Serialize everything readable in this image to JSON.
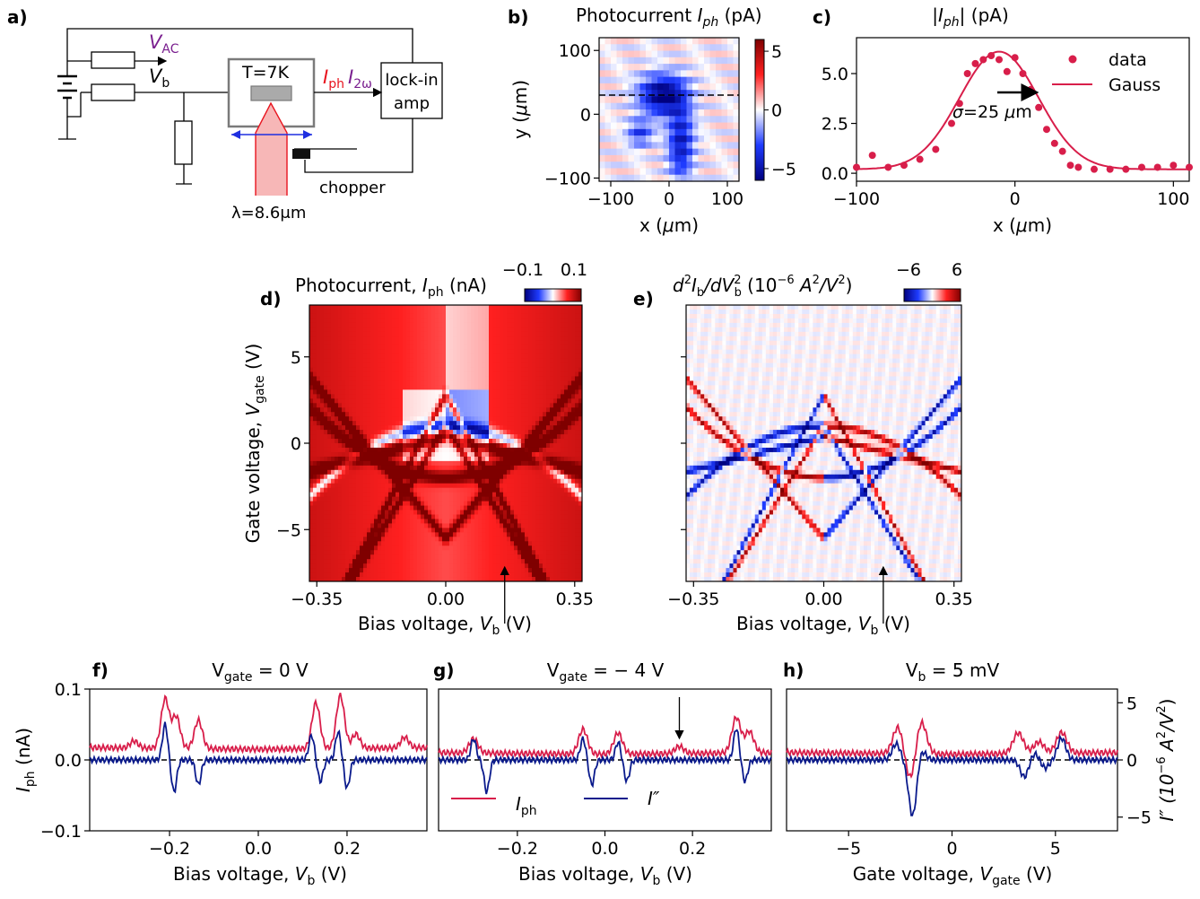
{
  "panel_labels": {
    "a": "a)",
    "b": "b)",
    "c": "c)",
    "d": "d)",
    "e": "e)",
    "f": "f)",
    "g": "g)",
    "h": "h)"
  },
  "schematic": {
    "vac_label": "V",
    "vac_sub": "AC",
    "vb_label": "V",
    "vb_sub": "b",
    "temp_label": "T=7K",
    "iph_label": "I",
    "iph_sub": "ph",
    "i2w_label": "I",
    "i2w_sub": "2ω",
    "lockin_line1": "lock-in",
    "lockin_line2": "amp",
    "chopper_label": "chopper",
    "wavelength_label": "λ=8.6μm",
    "colors": {
      "purple": "#7a1f8f",
      "red": "#e8141e",
      "blue": "#1f2fe0",
      "beam": "#f7b7b7"
    }
  },
  "chart_data": [
    {
      "id": "b",
      "type": "heatmap",
      "title": "Photocurrent I_ph (pA)",
      "title_parts": [
        "Photocurrent ",
        "I",
        "ph",
        " (pA)"
      ],
      "xlabel_parts": [
        "x (",
        "μ",
        "m)"
      ],
      "ylabel_parts": [
        "y (",
        "μ",
        "m)"
      ],
      "xlim": [
        -120,
        120
      ],
      "ylim": [
        -105,
        120
      ],
      "xticks": [
        -100,
        0,
        100
      ],
      "yticks": [
        -100,
        0,
        100
      ],
      "xtick_labels": [
        "−100",
        "0",
        "100"
      ],
      "ytick_labels": [
        "−100",
        "0",
        "100"
      ],
      "colorbar": {
        "range": [
          -6,
          6
        ],
        "ticks": [
          5,
          0,
          -5
        ],
        "tick_labels": [
          "5",
          "0",
          "−5"
        ]
      },
      "dashed_line_y": 30,
      "grid_size": [
        24,
        22
      ],
      "blobs": [
        {
          "x": -10,
          "y": 30,
          "sx": 28,
          "sy": 22,
          "amp": -6
        },
        {
          "x": -50,
          "y": -30,
          "sx": 15,
          "sy": 15,
          "amp": -3
        },
        {
          "x": 20,
          "y": -45,
          "sx": 15,
          "sy": 40,
          "amp": -4.5
        }
      ]
    },
    {
      "id": "c",
      "type": "scatter",
      "title_parts": [
        "|",
        "I",
        "ph",
        "| (pA)"
      ],
      "xlabel_parts": [
        "x (",
        "μ",
        "m)"
      ],
      "xlim": [
        -100,
        110
      ],
      "ylim": [
        -0.4,
        6.8
      ],
      "xticks": [
        -100,
        0,
        100
      ],
      "xtick_labels": [
        "−100",
        "0",
        "100"
      ],
      "yticks": [
        0,
        2.5,
        5
      ],
      "ytick_labels": [
        "0.0",
        "2.5",
        "5.0"
      ],
      "series": [
        {
          "name": "data",
          "kind": "points",
          "x": [
            -100,
            -90,
            -80,
            -70,
            -60,
            -50,
            -40,
            -35,
            -30,
            -25,
            -20,
            -15,
            -10,
            -5,
            0,
            5,
            10,
            15,
            20,
            25,
            30,
            35,
            40,
            50,
            60,
            70,
            80,
            90,
            100,
            110
          ],
          "y": [
            0.3,
            0.9,
            0.3,
            0.4,
            0.7,
            1.2,
            2.5,
            3.5,
            5.0,
            5.5,
            5.7,
            5.9,
            5.7,
            5.1,
            5.8,
            5.0,
            4.2,
            3.3,
            2.2,
            1.5,
            1.1,
            0.4,
            0.3,
            0.2,
            0.2,
            0.2,
            0.3,
            0.3,
            0.4,
            0.3
          ]
        },
        {
          "name": "Gauss",
          "kind": "line",
          "mu": -10,
          "sigma": 25,
          "amp": 5.9,
          "offset": 0.2
        }
      ],
      "annotation": "σ=25 μm",
      "annotation_parts": [
        "σ",
        "=25 ",
        "μ",
        "m"
      ],
      "legend": [
        "data",
        "Gauss"
      ],
      "legend_position": "top-right"
    },
    {
      "id": "d",
      "type": "heatmap",
      "title": "Photocurrent, I_ph (nA)",
      "title_parts": [
        "Photocurrent, ",
        "I",
        "ph",
        " (nA)"
      ],
      "colorbar": {
        "range": [
          -0.1,
          0.1
        ],
        "tick_labels": [
          "−0.1",
          "0.1"
        ]
      },
      "xlim": [
        -0.37,
        0.37
      ],
      "ylim": [
        -8,
        8
      ],
      "xticks": [
        -0.35,
        0.0,
        0.35
      ],
      "xtick_labels": [
        "−0.35",
        "0.00",
        "0.35"
      ],
      "yticks": [
        -5,
        0,
        5
      ],
      "ytick_labels": [
        "−5",
        "0",
        "5"
      ],
      "xlabel_parts": [
        "Bias voltage, ",
        "V",
        "b",
        " (V)"
      ],
      "ylabel_parts": [
        "Gate voltage, ",
        "V",
        "gate",
        " (V)"
      ],
      "arrow_x": 0.16
    },
    {
      "id": "e",
      "type": "heatmap",
      "title_parts": [
        "d",
        "2",
        "I",
        "b",
        "/d",
        "V",
        "2",
        "b",
        " (10",
        "−6",
        " A",
        "2",
        "/V",
        "2",
        ")"
      ],
      "colorbar": {
        "range": [
          -6,
          6
        ],
        "tick_labels": [
          "−6",
          "6"
        ]
      },
      "xlim": [
        -0.37,
        0.37
      ],
      "ylim": [
        -8,
        8
      ],
      "xticks": [
        -0.35,
        0.0,
        0.35
      ],
      "xtick_labels": [
        "−0.35",
        "0.00",
        "0.35"
      ],
      "yticks": [
        -5,
        0,
        5
      ],
      "xlabel_parts": [
        "Bias voltage, ",
        "V",
        "b",
        " (V)"
      ],
      "arrow_x": 0.16
    },
    {
      "id": "f",
      "type": "line",
      "title_parts": [
        "V",
        "gate",
        " = 0 V"
      ],
      "xlim": [
        -0.38,
        0.38
      ],
      "ylim": [
        -0.1,
        0.1
      ],
      "xticks": [
        -0.2,
        0.0,
        0.2
      ],
      "xtick_labels": [
        "−0.2",
        "0.0",
        "0.2"
      ],
      "yticks": [
        0.1,
        0.0,
        -0.1
      ],
      "ytick_labels": [
        "0.1",
        "0.0",
        "−0.1"
      ],
      "xlabel_parts": [
        "Bias voltage, ",
        "V",
        "b",
        " (V)"
      ],
      "ylabel_parts": [
        "I",
        "ph",
        " (nA)"
      ],
      "series": [
        {
          "name": "I_ph",
          "base": 0.015,
          "peaks": [
            [
              -0.21,
              0.07
            ],
            [
              -0.185,
              0.045
            ],
            [
              -0.135,
              0.04
            ],
            [
              -0.28,
              0.01
            ],
            [
              0.13,
              0.065
            ],
            [
              0.185,
              0.075
            ],
            [
              0.22,
              0.02
            ],
            [
              0.33,
              0.015
            ]
          ],
          "width": 0.009
        },
        {
          "name": "I''",
          "base": 0.0,
          "peaks": [
            [
              -0.21,
              0.05
            ],
            [
              -0.19,
              -0.045
            ],
            [
              -0.135,
              -0.035
            ],
            [
              0.12,
              0.035
            ],
            [
              0.14,
              -0.03
            ],
            [
              0.18,
              0.04
            ],
            [
              0.2,
              -0.04
            ]
          ],
          "width": 0.006
        }
      ]
    },
    {
      "id": "g",
      "type": "line",
      "title_parts": [
        "V",
        "gate",
        " = − 4 V"
      ],
      "xlim": [
        -0.38,
        0.38
      ],
      "ylim": [
        -0.1,
        0.1
      ],
      "xticks": [
        -0.2,
        0.0,
        0.2
      ],
      "xtick_labels": [
        "−0.2",
        "0.0",
        "0.2"
      ],
      "xlabel_parts": [
        "Bias voltage, ",
        "V",
        "b",
        " (V)"
      ],
      "legend": [
        "I_ph",
        "I''"
      ],
      "legend_parts": [
        [
          "I",
          "ph"
        ],
        [
          "I",
          "″"
        ]
      ],
      "legend_position": "bottom-left",
      "arrow_x": 0.17,
      "series": [
        {
          "name": "I_ph",
          "base": 0.008,
          "peaks": [
            [
              -0.3,
              0.02
            ],
            [
              -0.05,
              0.035
            ],
            [
              0.03,
              0.03
            ],
            [
              0.17,
              0.01
            ],
            [
              0.3,
              0.05
            ],
            [
              0.33,
              0.03
            ]
          ],
          "width": 0.01
        },
        {
          "name": "I''",
          "base": 0.0,
          "peaks": [
            [
              -0.3,
              0.03
            ],
            [
              -0.27,
              -0.045
            ],
            [
              -0.05,
              0.03
            ],
            [
              -0.03,
              -0.035
            ],
            [
              0.03,
              0.025
            ],
            [
              0.05,
              -0.03
            ],
            [
              0.3,
              0.045
            ],
            [
              0.32,
              -0.03
            ]
          ],
          "width": 0.006
        }
      ]
    },
    {
      "id": "h",
      "type": "line",
      "title_parts": [
        "V",
        "b",
        " = 5 mV"
      ],
      "xlim": [
        -8,
        8
      ],
      "ylim": [
        -6.2,
        6.2
      ],
      "xticks": [
        -5,
        0,
        5
      ],
      "xtick_labels": [
        "−5",
        "0",
        "5"
      ],
      "yticks": [
        5,
        0,
        -5
      ],
      "ytick_labels": [
        "5",
        "0",
        "−5"
      ],
      "xlabel_parts": [
        "Gate voltage, ",
        "V",
        "gate",
        " (V)"
      ],
      "ylabel_parts": [
        "I″ (10",
        "−6",
        " A",
        "2",
        "/V",
        "2",
        ")"
      ],
      "series": [
        {
          "name": "I_ph",
          "base": 0.5,
          "peaks": [
            [
              -2.6,
              2.4
            ],
            [
              -1.5,
              3.0
            ],
            [
              -2.0,
              -2.5
            ],
            [
              3.2,
              1.8
            ],
            [
              4.2,
              1.0
            ],
            [
              5.3,
              1.8
            ]
          ],
          "width": 0.25
        },
        {
          "name": "I''",
          "base": 0.0,
          "peaks": [
            [
              -2.7,
              1.4
            ],
            [
              -1.9,
              -5.0
            ],
            [
              -1.5,
              1.0
            ],
            [
              3.5,
              -1.5
            ],
            [
              4.5,
              -0.7
            ],
            [
              5.3,
              1.9
            ],
            [
              4.0,
              0.6
            ]
          ],
          "width": 0.2
        }
      ]
    }
  ]
}
